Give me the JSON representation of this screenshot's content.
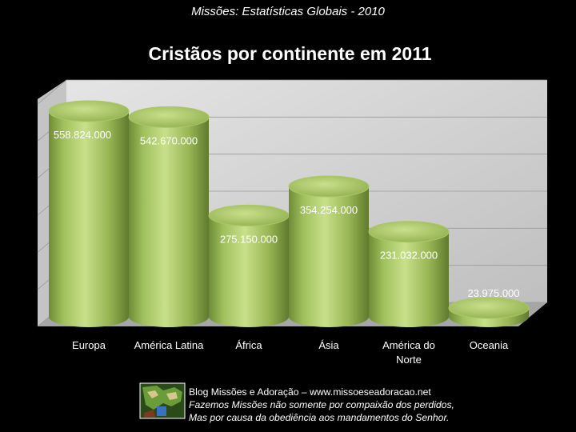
{
  "header": {
    "title": "Missões: Estatísticas Globais - 2010"
  },
  "chart_data": {
    "type": "bar",
    "title": "Cristãos por continente em 2011",
    "categories": [
      [
        "Europa"
      ],
      [
        "América Latina"
      ],
      [
        "África"
      ],
      [
        "Ásia"
      ],
      [
        "América do",
        "Norte"
      ],
      [
        "Oceania"
      ]
    ],
    "values": [
      558824000,
      542670000,
      275150000,
      354254000,
      231032000,
      23975000
    ],
    "data_labels": [
      "558.824.000",
      "542.670.000",
      "275.150.000",
      "354.254.000",
      "231.032.000",
      "23.975.000"
    ],
    "ylim": [
      0,
      600000000
    ],
    "grid": true,
    "xlabel": "",
    "ylabel": "",
    "colors": {
      "bar": "#9bbb59",
      "bar_light": "#c6de86",
      "bar_dark": "#6a8633",
      "top": "#b3d06d",
      "wall": "#d6d6d6",
      "floor": "#a6a6a6",
      "grid": "#9a9a9a",
      "label": "#ffffff"
    }
  },
  "footer": {
    "line1": "Blog Missões e Adoração – www.missoeseadoracao.net",
    "line2": "Fazemos Missões não somente por compaixão dos perdidos,",
    "line3": "Mas por causa da obediência aos mandamentos do Senhor.",
    "logo_icon": "globe-map-icon"
  }
}
